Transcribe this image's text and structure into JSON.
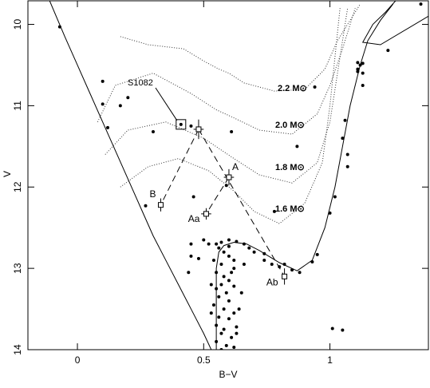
{
  "chart_data": {
    "type": "scatter",
    "x_label": "B−V",
    "y_label": "V",
    "xlim": [
      -0.196,
      1.39
    ],
    "ylim": [
      9.71,
      14.0
    ],
    "y_inverted": true,
    "xticks": [
      0,
      0.5,
      1
    ],
    "yticks": [
      10,
      11,
      12,
      13,
      14
    ],
    "stars": {
      "x": [
        -0.07,
        0.1,
        0.1,
        0.12,
        0.17,
        0.2,
        0.3,
        0.45,
        0.61,
        0.27,
        0.46,
        0.59,
        0.78,
        0.87,
        0.94,
        1.11,
        1.12,
        1.11,
        1.13,
        1.11,
        1.13,
        1.13,
        1.23,
        1.36,
        1.06,
        1.05,
        1.07,
        1.07,
        1.02,
        1.0,
        0.95,
        0.93,
        0.85,
        0.8,
        0.74,
        0.88,
        1.01,
        1.05,
        0.82,
        0.55,
        0.57,
        0.6,
        0.63,
        0.66,
        0.68,
        0.56,
        0.58,
        0.6,
        0.54,
        0.57,
        0.6,
        0.62,
        0.52,
        0.48,
        0.45,
        0.44,
        0.55,
        0.58,
        0.61,
        0.57,
        0.55,
        0.59,
        0.62,
        0.56,
        0.6,
        0.54,
        0.58,
        0.62,
        0.56,
        0.6,
        0.55,
        0.58,
        0.63,
        0.57,
        0.61,
        0.55,
        0.59,
        0.62,
        0.57,
        0.65,
        0.64,
        0.53,
        0.66,
        0.7,
        0.74,
        0.77,
        0.5,
        0.45,
        0.62,
        0.6,
        0.63,
        0.53
      ],
      "y": [
        10.03,
        10.7,
        10.98,
        11.27,
        11.0,
        10.9,
        11.32,
        11.25,
        11.32,
        12.23,
        12.12,
        11.98,
        12.3,
        11.5,
        10.77,
        10.47,
        10.5,
        10.55,
        10.48,
        10.58,
        10.6,
        10.75,
        10.32,
        9.75,
        11.18,
        11.4,
        11.6,
        11.75,
        12.12,
        12.32,
        12.83,
        12.92,
        13.02,
        12.98,
        12.9,
        13.05,
        13.74,
        13.76,
        12.95,
        12.7,
        12.68,
        12.65,
        12.67,
        12.7,
        12.75,
        12.75,
        12.8,
        12.85,
        12.9,
        12.95,
        12.73,
        12.9,
        12.7,
        12.88,
        12.7,
        13.05,
        13.05,
        13.1,
        13.05,
        13.2,
        13.25,
        13.3,
        13.22,
        13.35,
        13.4,
        13.45,
        13.5,
        13.55,
        13.6,
        13.62,
        13.7,
        13.75,
        13.72,
        13.8,
        13.85,
        13.9,
        13.95,
        13.97,
        14.0,
        13.3,
        13.5,
        13.2,
        12.95,
        12.8,
        12.82,
        12.95,
        12.65,
        12.85,
        13.0,
        13.15,
        13.8,
        13.55
      ],
      "color": "#000000"
    },
    "lines": [
      {
        "x": [
          -0.11,
          -0.05,
          0.0,
          0.05,
          0.1,
          0.15,
          0.2,
          0.25,
          0.3,
          0.35,
          0.4,
          0.45,
          0.5,
          0.53
        ],
        "y": [
          9.71,
          10.15,
          10.5,
          10.85,
          11.2,
          11.55,
          11.9,
          12.25,
          12.6,
          12.9,
          13.2,
          13.5,
          13.8,
          14.0
        ]
      },
      {
        "x": [
          0.55,
          0.55,
          0.55,
          0.56,
          0.58,
          0.62,
          0.67,
          0.72,
          0.8,
          0.87,
          0.93,
          0.98,
          1.02,
          1.05,
          1.08,
          1.12,
          1.15,
          1.2,
          1.25
        ],
        "y": [
          14.0,
          13.5,
          13.0,
          12.8,
          12.72,
          12.68,
          12.7,
          12.78,
          12.93,
          13.03,
          12.9,
          12.5,
          12.0,
          11.5,
          11.0,
          10.5,
          10.2,
          9.95,
          9.75
        ]
      },
      {
        "x": [
          1.39,
          1.2,
          1.13,
          1.17,
          1.22,
          1.26
        ],
        "y": [
          9.9,
          10.25,
          10.22,
          10.0,
          9.85,
          9.71
        ]
      }
    ],
    "tracks": [
      {
        "label": "2.2 M⊙",
        "x": [
          0.17,
          0.28,
          0.42,
          0.5,
          0.56,
          0.6,
          0.66,
          0.78,
          0.9,
          0.98,
          1.03,
          1.08,
          1.12
        ],
        "y": [
          10.15,
          10.25,
          10.3,
          10.45,
          10.55,
          10.6,
          10.72,
          10.82,
          10.8,
          10.55,
          10.2,
          9.95,
          9.75
        ]
      },
      {
        "label": "2.0 M⊙",
        "x": [
          0.08,
          0.15,
          0.3,
          0.45,
          0.55,
          0.62,
          0.72,
          0.85,
          0.95,
          1.0,
          1.05,
          1.1
        ],
        "y": [
          11.2,
          10.75,
          10.6,
          10.85,
          11.05,
          11.15,
          11.3,
          11.35,
          11.1,
          10.75,
          10.3,
          9.8
        ]
      },
      {
        "label": "1.8 M⊙",
        "x": [
          0.11,
          0.2,
          0.35,
          0.5,
          0.62,
          0.72,
          0.85,
          0.95,
          1.0,
          1.03,
          1.07
        ],
        "y": [
          11.6,
          11.3,
          11.2,
          11.4,
          11.65,
          11.85,
          11.95,
          11.7,
          11.2,
          10.6,
          9.8
        ]
      },
      {
        "label": "1.6 M⊙",
        "x": [
          0.17,
          0.28,
          0.4,
          0.52,
          0.62,
          0.7,
          0.8,
          0.9,
          0.97,
          1.0,
          1.04
        ],
        "y": [
          12.0,
          11.75,
          11.65,
          11.8,
          12.05,
          12.3,
          12.45,
          12.2,
          11.7,
          11.0,
          9.8
        ]
      }
    ],
    "s1082": {
      "label": "S1082",
      "x": 0.41,
      "y": 11.23
    },
    "components": {
      "labels": [
        null,
        "A",
        "Aa",
        "B",
        "Ab"
      ],
      "x": [
        0.48,
        0.6,
        0.51,
        0.33,
        0.82
      ],
      "y": [
        11.29,
        11.88,
        12.33,
        12.22,
        13.1
      ],
      "xerr": [
        0.02,
        0.02,
        0.02,
        0.01,
        0.01
      ],
      "yerr": [
        0.12,
        0.1,
        0.07,
        0.08,
        0.1
      ]
    }
  }
}
